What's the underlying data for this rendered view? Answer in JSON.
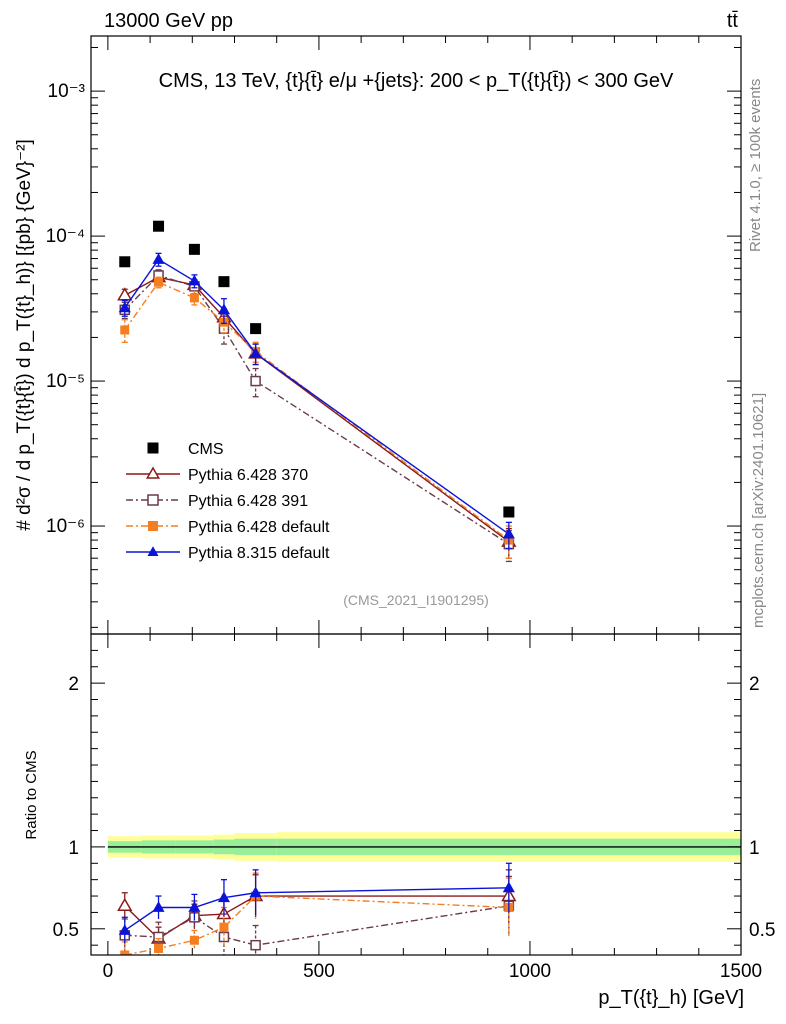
{
  "header": {
    "left": "13000 GeV pp",
    "right": "tt̄"
  },
  "side_labels": {
    "rivet": "Rivet 4.1.0, ≥ 100k events",
    "mcplots": "mcplots.cern.ch [arXiv:2401.10621]"
  },
  "colors": {
    "cms": "#000000",
    "p370": "#8b1a1a",
    "p391": "#6b3a4a",
    "p6def": "#f47e20",
    "p8def": "#0a14d8",
    "band_outer": "#ffff99",
    "band_inner": "#99ee99"
  },
  "chart_data": [
    {
      "type": "scatter",
      "panel": "main",
      "title": "CMS, 13 TeV, {t}{t̄} e/μ +{jets}: 200 <  p_T({t}{t̄}) < 300 GeV",
      "analysis_tag": "(CMS_2021_I1901295)",
      "ylabel": "# d²σ / d p_T({t}{t̄}) d p_T({t}_h)} [{pb} {GeV}⁻²]",
      "yscale": "log",
      "xlim": [
        -40,
        1500
      ],
      "ylim": [
        1.8e-07,
        0.0024
      ],
      "yticks": [
        {
          "value": 1e-06,
          "label": "10⁻⁶"
        },
        {
          "value": 1e-05,
          "label": "10⁻⁵"
        },
        {
          "value": 0.0001,
          "label": "10⁻⁴"
        },
        {
          "value": 0.001,
          "label": "10⁻³"
        }
      ],
      "x": [
        40,
        120,
        205,
        275,
        350,
        950
      ],
      "series": [
        {
          "key": "cms",
          "name": "CMS",
          "marker": "filled-square",
          "line": "none",
          "values": [
            6.65e-05,
            0.000117,
            8.1e-05,
            4.85e-05,
            2.3e-05,
            1.25e-06
          ],
          "errors": [
            1.8e-06,
            3e-06,
            2e-06,
            1.3e-06,
            7e-07,
            3e-08
          ]
        },
        {
          "key": "p370",
          "name": "Pythia 6.428 370",
          "marker": "open-triangle",
          "line": "solid",
          "values": [
            3.9e-05,
            5.2e-05,
            4.6e-05,
            2.75e-05,
            1.55e-05,
            7.8e-07
          ],
          "errors": [
            4e-06,
            4e-06,
            4e-06,
            4e-06,
            2.5e-06,
            1.8e-07
          ]
        },
        {
          "key": "p391",
          "name": "Pythia 6.428 391",
          "marker": "open-square",
          "line": "dash-dot",
          "values": [
            3.1e-05,
            5.35e-05,
            4.5e-05,
            2.3e-05,
            1e-05,
            7.5e-07
          ],
          "errors": [
            4e-06,
            5e-06,
            5e-06,
            5e-06,
            2.2e-06,
            1.8e-07
          ]
        },
        {
          "key": "p6def",
          "name": "Pythia 6.428 default",
          "marker": "filled-square",
          "line": "dash-dot",
          "values": [
            2.25e-05,
            4.8e-05,
            3.75e-05,
            2.55e-05,
            1.6e-05,
            8e-07
          ],
          "errors": [
            4e-06,
            4e-06,
            4e-06,
            4e-06,
            2.5e-06,
            2e-07
          ]
        },
        {
          "key": "p8def",
          "name": "Pythia 8.315 default",
          "marker": "filled-triangle",
          "line": "solid",
          "values": [
            3.2e-05,
            6.9e-05,
            4.9e-05,
            3.1e-05,
            1.55e-05,
            8.8e-07
          ],
          "errors": [
            4e-06,
            7e-06,
            5e-06,
            6e-06,
            2.5e-06,
            1.8e-07
          ]
        }
      ]
    },
    {
      "type": "scatter",
      "panel": "ratio",
      "ylabel": "Ratio to CMS",
      "xlabel": "p_T({t}_h) [GeV]",
      "xlim": [
        -40,
        1500
      ],
      "ylim": [
        0.34,
        2.3
      ],
      "xticks": [
        0,
        500,
        1000,
        1500
      ],
      "yticks": [
        0.5,
        1,
        2
      ],
      "reference": 1,
      "band_edges": [
        0,
        80,
        160,
        250,
        300,
        400,
        1500
      ],
      "band_inner": [
        0.035,
        0.04,
        0.04,
        0.045,
        0.05,
        0.05
      ],
      "band_outer": [
        0.065,
        0.07,
        0.07,
        0.075,
        0.085,
        0.09
      ],
      "x": [
        40,
        120,
        205,
        275,
        350,
        950
      ],
      "series": [
        {
          "key": "p370",
          "name": "Pythia 6.428 370",
          "values": [
            0.64,
            0.44,
            0.58,
            0.59,
            0.7,
            0.7
          ],
          "errors": [
            0.08,
            0.07,
            0.07,
            0.1,
            0.13,
            0.16
          ]
        },
        {
          "key": "p391",
          "name": "Pythia 6.428 391",
          "values": [
            0.46,
            0.45,
            0.57,
            0.45,
            0.4,
            0.64
          ],
          "errors": [
            0.1,
            0.09,
            0.1,
            0.14,
            0.12,
            0.18
          ]
        },
        {
          "key": "p6def",
          "name": "Pythia 6.428 default",
          "values": [
            0.34,
            0.38,
            0.43,
            0.51,
            0.7,
            0.63
          ],
          "errors": [
            0.08,
            0.06,
            0.06,
            0.12,
            0.14,
            0.18
          ]
        },
        {
          "key": "p8def",
          "name": "Pythia 8.315 default",
          "values": [
            0.49,
            0.63,
            0.63,
            0.69,
            0.72,
            0.75
          ],
          "errors": [
            0.08,
            0.07,
            0.08,
            0.11,
            0.14,
            0.15
          ]
        }
      ]
    }
  ]
}
